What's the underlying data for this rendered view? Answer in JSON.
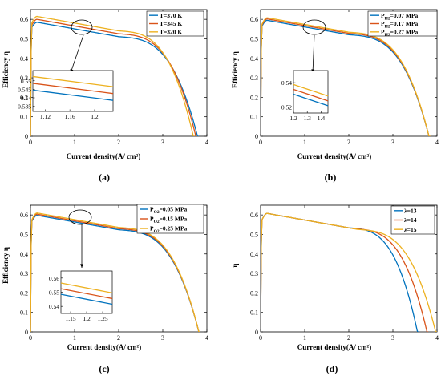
{
  "colors": {
    "blue": "#0072BD",
    "orange": "#D95319",
    "yellow": "#EDB120"
  },
  "chart_data": [
    {
      "type": "line",
      "panel": "a",
      "caption": "(a)",
      "xlabel": "Current density(A/ cm²)",
      "ylabel": "Efficiency η",
      "xlim": [
        0,
        4
      ],
      "ylim": [
        0,
        0.65
      ],
      "xticks": [
        0,
        1,
        2,
        3,
        4
      ],
      "yticks": [
        0,
        0.1,
        0.2,
        0.3,
        0.4,
        0.5,
        0.6
      ],
      "legend_position": "top-right",
      "series": [
        {
          "name": "T=370 K",
          "color": "blue",
          "peak": 0.585,
          "pstart": 0.555,
          "xmax": 3.82,
          "knee": 2.0
        },
        {
          "name": "T=345 K",
          "color": "orange",
          "peak": 0.6,
          "pstart": 0.566,
          "xmax": 3.78,
          "knee": 2.0
        },
        {
          "name": "T=320 K",
          "color": "yellow",
          "peak": 0.615,
          "pstart": 0.577,
          "xmax": 3.72,
          "knee": 2.0
        }
      ],
      "inset": {
        "xlim": [
          1.1,
          1.23
        ],
        "ylim": [
          0.532,
          0.556
        ],
        "xticks": [
          1.12,
          1.16,
          1.2
        ],
        "yticks": [
          0.535,
          0.54,
          0.545,
          0.55
        ],
        "ytick_labels": [
          "0.535",
          "0.54",
          "0.545",
          "0.55"
        ],
        "xtick_labels": [
          "1.12",
          "1.16",
          "1.2"
        ],
        "lines": [
          {
            "series": "T=370 K",
            "y_start": 0.5445,
            "y_end": 0.5385
          },
          {
            "series": "T=345 K",
            "y_start": 0.5485,
            "y_end": 0.5425
          },
          {
            "series": "T=320 K",
            "y_start": 0.5525,
            "y_end": 0.5465
          }
        ]
      }
    },
    {
      "type": "line",
      "panel": "b",
      "caption": "(b)",
      "xlabel": "Current density(A/ cm²)",
      "ylabel": "Efficiency η",
      "xlim": [
        0,
        4
      ],
      "ylim": [
        0,
        0.65
      ],
      "xticks": [
        0,
        1,
        2,
        3,
        4
      ],
      "yticks": [
        0,
        0.1,
        0.2,
        0.3,
        0.4,
        0.5,
        0.6
      ],
      "legend_position": "top-right",
      "series": [
        {
          "name": "PH2=0.07 MPa",
          "sub_base": "P",
          "sub": "H2",
          "rest": "=0.07 MPa",
          "color": "blue",
          "peak": 0.595,
          "pstart": 0.56,
          "xmax": 3.85,
          "knee": 2.0
        },
        {
          "name": "PH2=0.17 MPa",
          "sub_base": "P",
          "sub": "H2",
          "rest": "=0.17 MPa",
          "color": "orange",
          "peak": 0.602,
          "pstart": 0.565,
          "xmax": 3.85,
          "knee": 2.0
        },
        {
          "name": "PH2=0.27 MPa",
          "sub_base": "P",
          "sub": "H2",
          "rest": "=0.27 MPa",
          "color": "yellow",
          "peak": 0.608,
          "pstart": 0.57,
          "xmax": 3.85,
          "knee": 2.0
        }
      ],
      "inset": {
        "xlim": [
          1.2,
          1.45
        ],
        "ylim": [
          0.515,
          0.55
        ],
        "xticks": [
          1.2,
          1.3,
          1.4
        ],
        "yticks": [
          0.52,
          0.53,
          0.54
        ],
        "ytick_labels": [
          "0.52",
          "",
          "0.54"
        ],
        "xtick_labels": [
          "1.2",
          "1.3",
          "1.4"
        ],
        "lines": [
          {
            "series": "PH2=0.07 MPa",
            "y_start": 0.5305,
            "y_end": 0.521
          },
          {
            "series": "PH2=0.17 MPa",
            "y_start": 0.5345,
            "y_end": 0.525
          },
          {
            "series": "PH2=0.27 MPa",
            "y_start": 0.5385,
            "y_end": 0.529
          }
        ]
      }
    },
    {
      "type": "line",
      "panel": "c",
      "caption": "(c)",
      "xlabel": "Current density(A/ cm²)",
      "ylabel": "Efficiency η",
      "xlim": [
        0,
        4
      ],
      "ylim": [
        0,
        0.65
      ],
      "xticks": [
        0,
        1,
        2,
        3,
        4
      ],
      "yticks": [
        0,
        0.1,
        0.2,
        0.3,
        0.4,
        0.5,
        0.6
      ],
      "legend_position": "top-right",
      "series": [
        {
          "name": "PO2=0.05 MPa",
          "sub_base": "P",
          "sub": "O2",
          "rest": "=0.05 MPa",
          "color": "blue",
          "peak": 0.598,
          "pstart": 0.562,
          "xmax": 3.85,
          "knee": 2.0
        },
        {
          "name": "PO2=0.15 MPa",
          "sub_base": "P",
          "sub": "O2",
          "rest": "=0.15 MPa",
          "color": "orange",
          "peak": 0.604,
          "pstart": 0.566,
          "xmax": 3.85,
          "knee": 2.0
        },
        {
          "name": "PO2=0.25 MPa",
          "sub_base": "P",
          "sub": "O2",
          "rest": "=0.25 MPa",
          "color": "yellow",
          "peak": 0.61,
          "pstart": 0.57,
          "xmax": 3.85,
          "knee": 2.0
        }
      ],
      "inset": {
        "xlim": [
          1.12,
          1.28
        ],
        "ylim": [
          0.535,
          0.565
        ],
        "xticks": [
          1.15,
          1.2,
          1.25
        ],
        "yticks": [
          0.54,
          0.55,
          0.56
        ],
        "ytick_labels": [
          "0.54",
          "0.55",
          "0.56"
        ],
        "xtick_labels": [
          "1.15",
          "1.2",
          "1.25"
        ],
        "lines": [
          {
            "series": "PO2=0.05 MPa",
            "y_start": 0.5485,
            "y_end": 0.5415
          },
          {
            "series": "PO2=0.15 MPa",
            "y_start": 0.5525,
            "y_end": 0.5455
          },
          {
            "series": "PO2=0.25 MPa",
            "y_start": 0.5565,
            "y_end": 0.5495
          }
        ]
      }
    },
    {
      "type": "line",
      "panel": "d",
      "caption": "(d)",
      "xlabel": "Current density(A/ cm²)",
      "ylabel": "η",
      "xlim": [
        0,
        4
      ],
      "ylim": [
        0,
        0.65
      ],
      "xticks": [
        0,
        1,
        2,
        3,
        4
      ],
      "yticks": [
        0,
        0.1,
        0.2,
        0.3,
        0.4,
        0.5,
        0.6
      ],
      "legend_position": "top-right",
      "series": [
        {
          "name": "λ=13",
          "color": "blue",
          "peak": 0.608,
          "pstart": 0.57,
          "xmax": 3.58,
          "knee": 2.0
        },
        {
          "name": "λ=14",
          "color": "orange",
          "peak": 0.608,
          "pstart": 0.57,
          "xmax": 3.8,
          "knee": 2.1
        },
        {
          "name": "λ=15",
          "color": "yellow",
          "peak": 0.608,
          "pstart": 0.57,
          "xmax": 4.0,
          "knee": 2.2
        }
      ]
    }
  ]
}
